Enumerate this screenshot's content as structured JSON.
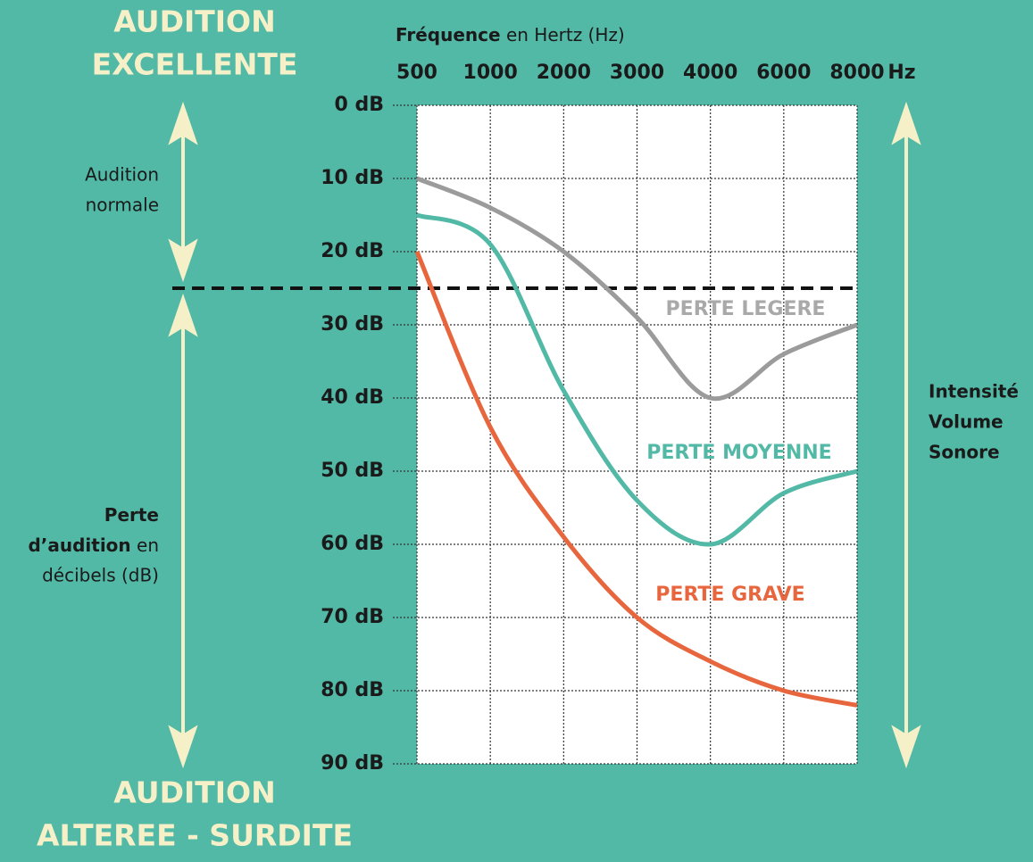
{
  "chart_data": {
    "type": "line",
    "top_label": [
      "AUDITION",
      "EXCELLENTE"
    ],
    "bottom_label": [
      "AUDITION",
      "ALTEREE - SURDITE"
    ],
    "x_label": {
      "bold": "Fréquence",
      "rest": "en Hertz (Hz)"
    },
    "x_unit": "Hz",
    "categories": [
      "500",
      "1000",
      "2000",
      "3000",
      "4000",
      "6000",
      "8000"
    ],
    "series": [
      {
        "name": "PERTE LEGERE",
        "color": "#9b9b9b",
        "label_color": "#a9a9a9",
        "values": [
          10,
          14,
          20,
          29,
          40,
          34,
          30
        ]
      },
      {
        "name": "PERTE MOYENNE",
        "color": "#52b9a6",
        "label_color": "#52b9a6",
        "values": [
          15,
          19,
          39,
          54,
          60,
          53,
          50
        ]
      },
      {
        "name": "PERTE GRAVE",
        "color": "#e8663d",
        "label_color": "#e8663d",
        "values": [
          20,
          44,
          59,
          70,
          76,
          80,
          82
        ]
      }
    ],
    "ylim": [
      0,
      90
    ],
    "yticks": [
      {
        "value": 0,
        "label": "0 dB"
      },
      {
        "value": 10,
        "label": "10 dB"
      },
      {
        "value": 20,
        "label": "20 dB"
      },
      {
        "value": 30,
        "label": "30 dB"
      },
      {
        "value": 40,
        "label": "40 dB"
      },
      {
        "value": 50,
        "label": "50 dB"
      },
      {
        "value": 60,
        "label": "60 dB"
      },
      {
        "value": 70,
        "label": "70 dB"
      },
      {
        "value": 80,
        "label": "80 dB"
      },
      {
        "value": 90,
        "label": "90 dB"
      }
    ],
    "threshold": 25,
    "normal_label": [
      "Audition",
      "normale"
    ],
    "loss_label": {
      "line1": "Perte",
      "bold2": "d’audition",
      "rest2": "en",
      "line3": "décibels (dB)"
    },
    "right_label": [
      "Intensité",
      "Volume",
      "Sonore"
    ],
    "grid": true
  }
}
